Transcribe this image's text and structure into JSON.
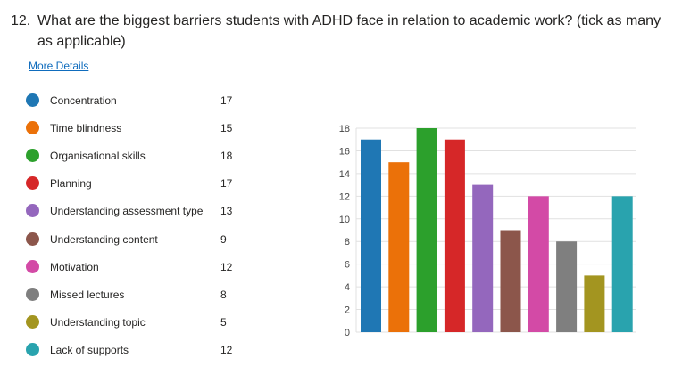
{
  "question": {
    "number": "12.",
    "text": "What are the biggest barriers students with ADHD face in relation to academic work? (tick as many as applicable)"
  },
  "more_details_label": "More Details",
  "chart_data": {
    "type": "bar",
    "categories": [
      "Concentration",
      "Time blindness",
      "Organisational skills",
      "Planning",
      "Understanding assessment type",
      "Understanding content",
      "Motivation",
      "Missed lectures",
      "Understanding topic",
      "Lack of supports"
    ],
    "values": [
      17,
      15,
      18,
      17,
      13,
      9,
      12,
      8,
      5,
      12
    ],
    "colors": [
      "#1f77b4",
      "#eb7109",
      "#2ca02c",
      "#d62728",
      "#9467bd",
      "#8c564b",
      "#d34aa6",
      "#7f7f7f",
      "#a39520",
      "#29a3ae"
    ],
    "ylim": [
      0,
      18
    ],
    "yticks": [
      "0",
      "2",
      "4",
      "6",
      "8",
      "10",
      "12",
      "14",
      "16",
      "18"
    ],
    "grid": true,
    "legend": "left"
  }
}
